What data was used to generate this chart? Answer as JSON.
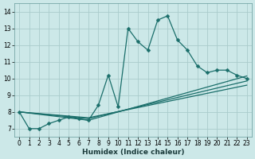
{
  "xlabel": "Humidex (Indice chaleur)",
  "bg_color": "#cce8e8",
  "grid_color": "#aacccc",
  "line_color": "#1a6e6a",
  "markersize": 2.5,
  "linewidth": 0.9,
  "xlim": [
    -0.5,
    23.5
  ],
  "ylim": [
    6.5,
    14.5
  ],
  "xticks": [
    0,
    1,
    2,
    3,
    4,
    5,
    6,
    7,
    8,
    9,
    10,
    11,
    12,
    13,
    14,
    15,
    16,
    17,
    18,
    19,
    20,
    21,
    22,
    23
  ],
  "yticks": [
    7,
    8,
    9,
    10,
    11,
    12,
    13,
    14
  ],
  "main_line": {
    "x": [
      0,
      1,
      2,
      3,
      4,
      5,
      6,
      7,
      8,
      9,
      10,
      11,
      12,
      13,
      14,
      15,
      16,
      17,
      18,
      19,
      20,
      21,
      22,
      23
    ],
    "y": [
      8.0,
      7.0,
      7.0,
      7.3,
      7.5,
      7.7,
      7.6,
      7.5,
      8.4,
      10.2,
      8.3,
      13.0,
      12.2,
      11.7,
      13.5,
      13.75,
      12.3,
      11.7,
      10.75,
      10.35,
      10.5,
      10.5,
      10.2,
      10.0
    ]
  },
  "fan_lines": [
    {
      "x": [
        0,
        7,
        23
      ],
      "y": [
        8.0,
        7.5,
        10.15
      ]
    },
    {
      "x": [
        0,
        7,
        23
      ],
      "y": [
        8.0,
        7.6,
        9.85
      ]
    },
    {
      "x": [
        0,
        7,
        23
      ],
      "y": [
        8.0,
        7.65,
        9.6
      ]
    }
  ]
}
